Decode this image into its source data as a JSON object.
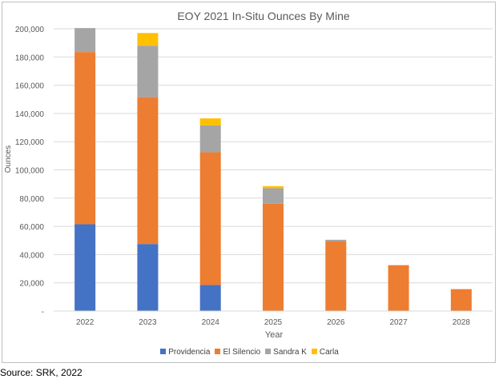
{
  "chart_data": {
    "type": "bar",
    "stacked": true,
    "title": "EOY 2021 In-Situ Ounces By Mine",
    "xlabel": "Year",
    "ylabel": "Ounces",
    "ylim": [
      0,
      200000
    ],
    "yticks": [
      "-",
      "20,000",
      "40,000",
      "60,000",
      "80,000",
      "100,000",
      "120,000",
      "140,000",
      "160,000",
      "180,000",
      "200,000"
    ],
    "ytick_values": [
      0,
      20000,
      40000,
      60000,
      80000,
      100000,
      120000,
      140000,
      160000,
      180000,
      200000
    ],
    "categories": [
      "2022",
      "2023",
      "2024",
      "2025",
      "2026",
      "2027",
      "2028"
    ],
    "grid": true,
    "legend_position": "bottom",
    "series": [
      {
        "name": "Providencia",
        "color": "#4472c4",
        "values": [
          61500,
          47500,
          18500,
          0,
          0,
          0,
          0
        ]
      },
      {
        "name": "El Silencio",
        "color": "#ed7d31",
        "values": [
          122000,
          104000,
          94000,
          76000,
          49500,
          32500,
          15500
        ]
      },
      {
        "name": "Sandra K",
        "color": "#a5a5a5",
        "values": [
          17000,
          36500,
          19000,
          11000,
          1000,
          0,
          0
        ]
      },
      {
        "name": "Carla",
        "color": "#ffc000",
        "values": [
          0,
          9000,
          5000,
          1500,
          0,
          0,
          0
        ]
      }
    ]
  },
  "source_note": "Source: SRK, 2022"
}
